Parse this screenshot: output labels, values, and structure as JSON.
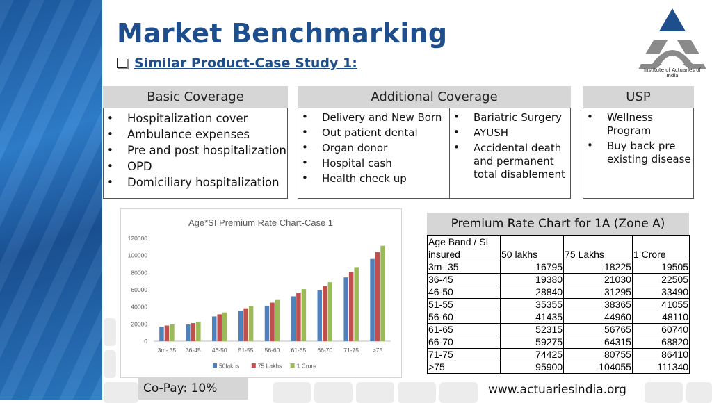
{
  "header": {
    "title": "Market Benchmarking",
    "subtitle": "Similar Product-Case Study 1:"
  },
  "logo": {
    "caption": "Institute of Actuaries of India",
    "color": "#1f4e8c"
  },
  "sections": {
    "basic": {
      "title": "Basic Coverage",
      "items": [
        "Hospitalization cover",
        "Ambulance expenses",
        "Pre and post hospitalization",
        "OPD",
        "Domiciliary hospitalization"
      ]
    },
    "additional": {
      "title": "Additional Coverage",
      "left_items": [
        "Delivery and New Born",
        "Out patient dental",
        "Organ donor",
        "Hospital cash",
        "Health check up"
      ],
      "right_items": [
        "Bariatric Surgery",
        "AYUSH",
        "Accidental death and permanent total disablement"
      ]
    },
    "usp": {
      "title": "USP",
      "items": [
        "Wellness Program",
        "Buy back pre existing disease"
      ]
    }
  },
  "chart_data": {
    "type": "bar",
    "title": "Age*SI Premium Rate Chart-Case 1",
    "categories": [
      "3m- 35",
      "36-45",
      "46-50",
      "51-55",
      "56-60",
      "61-65",
      "66-70",
      "71-75",
      ">75"
    ],
    "series": [
      {
        "name": "50 lakhs",
        "color": "#4f81bd",
        "values": [
          16795,
          19380,
          28840,
          35355,
          41435,
          52315,
          59275,
          74425,
          95900
        ]
      },
      {
        "name": "75 Lakhs",
        "color": "#c0504d",
        "values": [
          18225,
          21030,
          31295,
          38365,
          44960,
          56765,
          64315,
          80755,
          104055
        ]
      },
      {
        "name": "1 Crore",
        "color": "#9bbb59",
        "values": [
          19505,
          22505,
          33490,
          41055,
          48110,
          60740,
          68820,
          86410,
          111340
        ]
      }
    ],
    "ylim": [
      0,
      120000
    ],
    "yticks": [
      "0",
      "20000",
      "40000",
      "60000",
      "80000",
      "100000",
      "120000"
    ],
    "legend_position": "bottom",
    "grid": false
  },
  "rate_table": {
    "title": "Premium Rate Chart for 1A (Zone A)",
    "columns": [
      "Age Band / SI insured",
      "50 lakhs",
      "75 Lakhs",
      "1 Crore"
    ],
    "rows": [
      [
        "3m- 35",
        "16795",
        "18225",
        "19505"
      ],
      [
        "36-45",
        "19380",
        "21030",
        "22505"
      ],
      [
        "46-50",
        "28840",
        "31295",
        "33490"
      ],
      [
        "51-55",
        "35355",
        "38365",
        "41055"
      ],
      [
        "56-60",
        "41435",
        "44960",
        "48110"
      ],
      [
        "61-65",
        "52315",
        "56765",
        "60740"
      ],
      [
        "66-70",
        "59275",
        "64315",
        "68820"
      ],
      [
        "71-75",
        "74425",
        "80755",
        "86410"
      ],
      [
        ">75",
        "95900",
        "104055",
        "111340"
      ]
    ]
  },
  "footer": {
    "copay": "Co-Pay: 10%",
    "website": "www.actuariesindia.org"
  }
}
